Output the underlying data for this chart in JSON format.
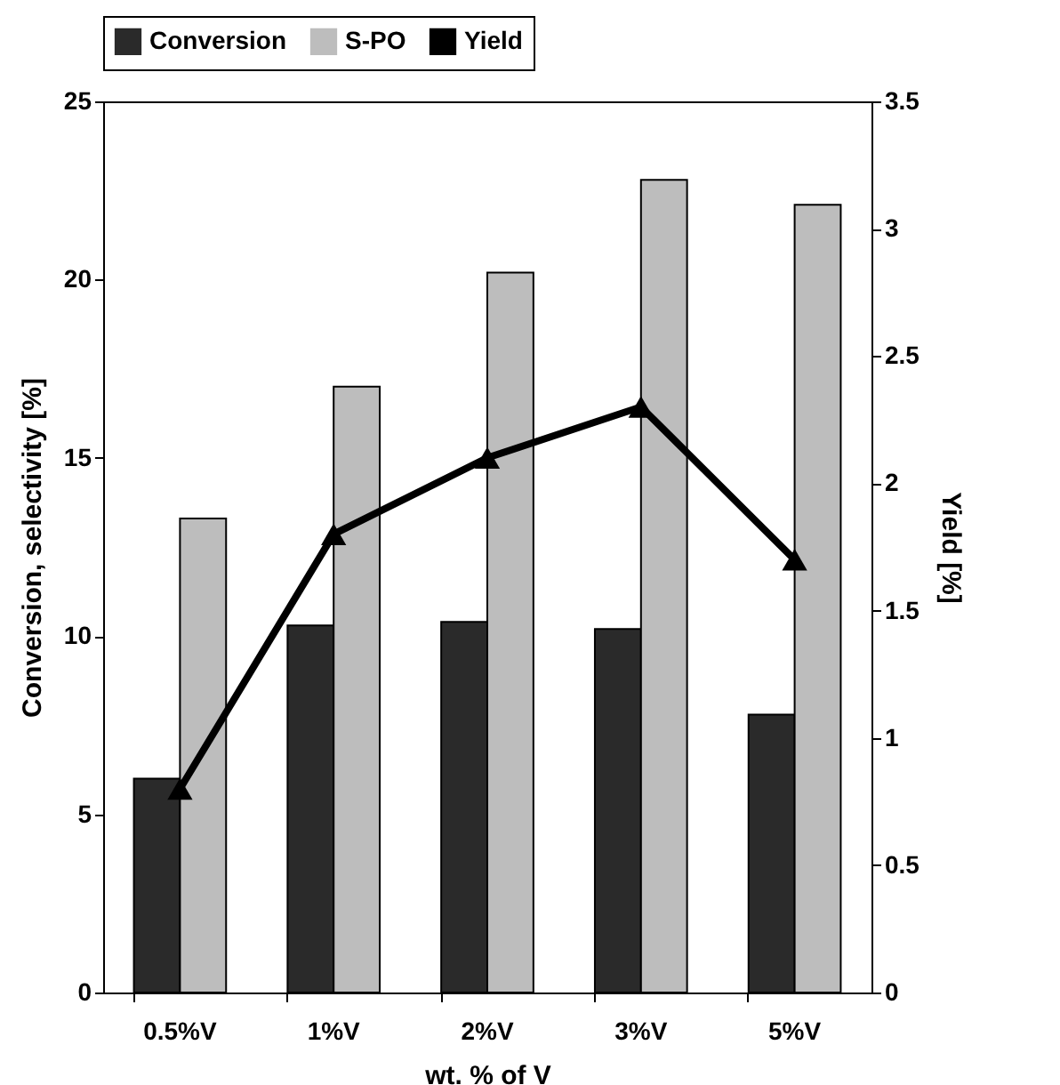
{
  "chart_data": {
    "type": "bar",
    "xlabel": "wt. % of  V",
    "ylabel": "Conversion, selectivity [%]",
    "y2label": "Yield [%]",
    "categories": [
      "0.5%V",
      "1%V",
      "2%V",
      "3%V",
      "5%V"
    ],
    "series": [
      {
        "name": "Conversion",
        "color": "#2a2a2a",
        "values": [
          6.0,
          10.3,
          10.4,
          10.2,
          7.8
        ]
      },
      {
        "name": "S-PO",
        "color": "#bdbdbd",
        "values": [
          13.3,
          17.0,
          20.2,
          22.8,
          22.1
        ]
      },
      {
        "name": "Yield",
        "type": "line",
        "axis": "y2",
        "color": "#000000",
        "marker": "triangle",
        "values": [
          0.8,
          1.8,
          2.1,
          2.3,
          1.7
        ]
      }
    ],
    "ylim": [
      0,
      25
    ],
    "yticks": [
      0,
      5,
      10,
      15,
      20,
      25
    ],
    "y2lim": [
      0,
      3.5
    ],
    "y2ticks": [
      0,
      0.5,
      1,
      1.5,
      2,
      2.5,
      3,
      3.5
    ],
    "grid": false,
    "legend": "top"
  }
}
